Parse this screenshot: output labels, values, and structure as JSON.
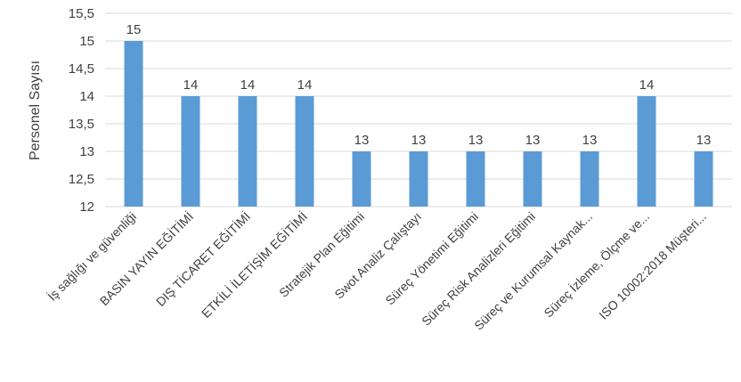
{
  "chart_data": {
    "type": "bar",
    "categories": [
      "İş sağlığı ve güvenliği",
      "BASIN YAYIN EĞİTİMİ",
      "DIŞ TİCARET EĞİTİMİ",
      "ETKİLİ İLETİŞİM EĞİTİMİ",
      "Stratejik Plan Eğitimi",
      "Swot Analiz Çalıştayı",
      "Süreç Yönetimi Eğitimi",
      "Süreç Risk Analizleri Eğitimi",
      "Süreç ve Kurumsal Kaynak...",
      "Süreç İzleme, Ölçme ve...",
      "ISO 10002:2018 Müşteri..."
    ],
    "values": [
      15,
      14,
      14,
      14,
      13,
      13,
      13,
      13,
      13,
      14,
      13
    ],
    "data_labels": [
      "15",
      "14",
      "14",
      "14",
      "13",
      "13",
      "13",
      "13",
      "13",
      "14",
      "13"
    ],
    "ylabel": "Personel Sayısı",
    "ylim": [
      12,
      15.5
    ],
    "yticks": [
      12,
      12.5,
      13,
      13.5,
      14,
      14.5,
      15,
      15.5
    ],
    "ytick_labels": [
      "12",
      "12,5",
      "13",
      "13,5",
      "14",
      "14,5",
      "15",
      "15,5"
    ],
    "grid": true,
    "bar_color": "#5b9bd5",
    "grid_color": "#d9d9d9",
    "text_color": "#404040"
  }
}
